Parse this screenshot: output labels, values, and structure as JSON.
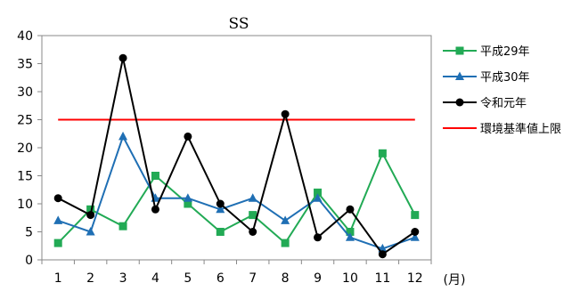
{
  "chart_data": {
    "type": "line",
    "title": "SS",
    "xlabel": "(月)",
    "ylabel": "",
    "ylim": [
      0,
      40
    ],
    "yticks": [
      0,
      5,
      10,
      15,
      20,
      25,
      30,
      35,
      40
    ],
    "categories": [
      "1",
      "2",
      "3",
      "4",
      "5",
      "6",
      "7",
      "8",
      "9",
      "10",
      "11",
      "12"
    ],
    "legend_position": "right",
    "grid": false,
    "series": [
      {
        "name": "平成29年",
        "color": "#22aa55",
        "marker": "square",
        "values": [
          3,
          9,
          6,
          15,
          10,
          5,
          8,
          3,
          12,
          5,
          19,
          8
        ]
      },
      {
        "name": "平成30年",
        "color": "#1f6fb4",
        "marker": "triangle",
        "values": [
          7,
          5,
          22,
          11,
          11,
          9,
          11,
          7,
          11,
          4,
          2,
          4
        ]
      },
      {
        "name": "令和元年",
        "color": "#000000",
        "marker": "circle",
        "values": [
          11,
          8,
          36,
          9,
          22,
          10,
          5,
          26,
          4,
          9,
          1,
          5
        ]
      },
      {
        "name": "環境基準値上限",
        "color": "#ff0000",
        "marker": "none",
        "reference": 25
      }
    ]
  }
}
